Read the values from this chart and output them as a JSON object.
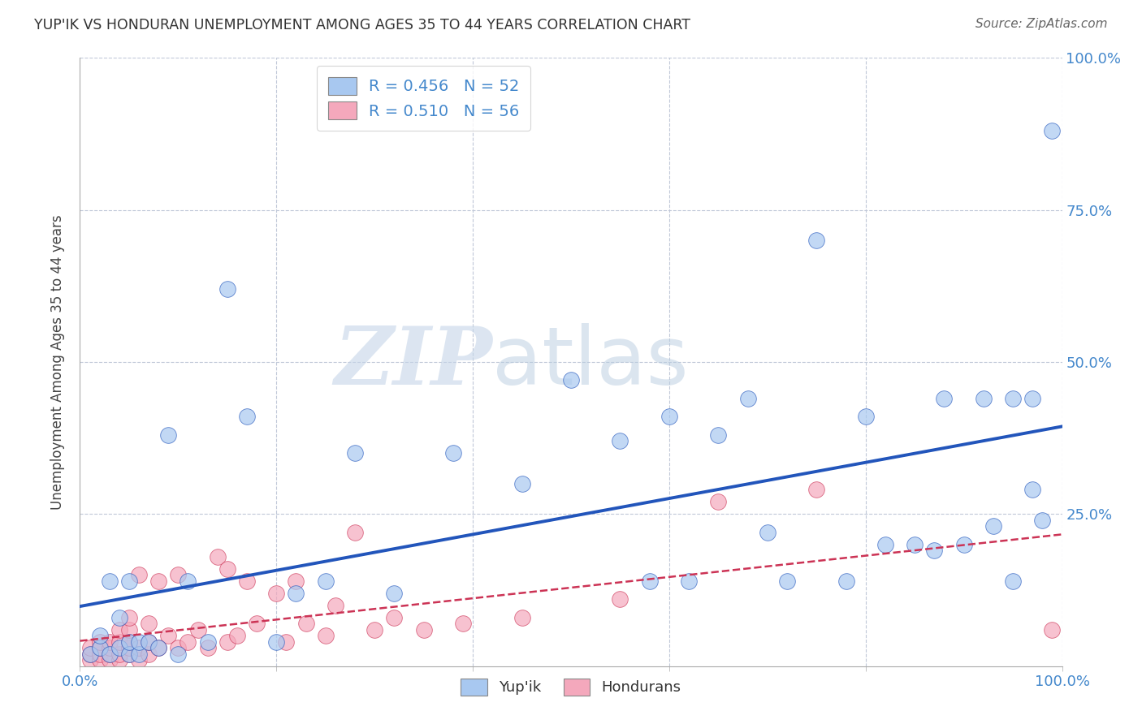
{
  "title": "YUP'IK VS HONDURAN UNEMPLOYMENT AMONG AGES 35 TO 44 YEARS CORRELATION CHART",
  "source": "Source: ZipAtlas.com",
  "ylabel": "Unemployment Among Ages 35 to 44 years",
  "xlim": [
    0,
    1.0
  ],
  "ylim": [
    0,
    1.0
  ],
  "xticks": [
    0.0,
    0.2,
    0.4,
    0.6,
    0.8,
    1.0
  ],
  "yticks": [
    0.0,
    0.25,
    0.5,
    0.75,
    1.0
  ],
  "xticklabels": [
    "0.0%",
    "",
    "",
    "",
    "",
    "100.0%"
  ],
  "yticklabels_right": [
    "",
    "25.0%",
    "50.0%",
    "75.0%",
    "100.0%"
  ],
  "background_color": "#ffffff",
  "grid_color": "#c0c8d8",
  "watermark_zip": "ZIP",
  "watermark_atlas": "atlas",
  "legend_r1": "R = 0.456",
  "legend_n1": "N = 52",
  "legend_r2": "R = 0.510",
  "legend_n2": "N = 56",
  "legend_label1": "Yup'ik",
  "legend_label2": "Hondurans",
  "scatter_color1": "#a8c8f0",
  "scatter_color2": "#f4a8bc",
  "line_color1": "#2255bb",
  "line_color2": "#cc3355",
  "axis_color": "#4488cc",
  "title_color": "#333333",
  "source_color": "#666666",
  "yupik_x": [
    0.01,
    0.02,
    0.02,
    0.03,
    0.03,
    0.04,
    0.04,
    0.05,
    0.05,
    0.05,
    0.06,
    0.06,
    0.07,
    0.08,
    0.09,
    0.1,
    0.11,
    0.13,
    0.15,
    0.17,
    0.2,
    0.22,
    0.25,
    0.28,
    0.32,
    0.38,
    0.45,
    0.5,
    0.55,
    0.58,
    0.6,
    0.62,
    0.65,
    0.68,
    0.7,
    0.72,
    0.75,
    0.78,
    0.8,
    0.82,
    0.85,
    0.87,
    0.88,
    0.9,
    0.92,
    0.93,
    0.95,
    0.95,
    0.97,
    0.97,
    0.98,
    0.99
  ],
  "yupik_y": [
    0.02,
    0.03,
    0.05,
    0.02,
    0.14,
    0.03,
    0.08,
    0.02,
    0.04,
    0.14,
    0.02,
    0.04,
    0.04,
    0.03,
    0.38,
    0.02,
    0.14,
    0.04,
    0.62,
    0.41,
    0.04,
    0.12,
    0.14,
    0.35,
    0.12,
    0.35,
    0.3,
    0.47,
    0.37,
    0.14,
    0.41,
    0.14,
    0.38,
    0.44,
    0.22,
    0.14,
    0.7,
    0.14,
    0.41,
    0.2,
    0.2,
    0.19,
    0.44,
    0.2,
    0.44,
    0.23,
    0.44,
    0.14,
    0.44,
    0.29,
    0.24,
    0.88
  ],
  "honduran_x": [
    0.01,
    0.01,
    0.01,
    0.02,
    0.02,
    0.02,
    0.02,
    0.03,
    0.03,
    0.03,
    0.03,
    0.04,
    0.04,
    0.04,
    0.04,
    0.05,
    0.05,
    0.05,
    0.05,
    0.05,
    0.06,
    0.06,
    0.06,
    0.07,
    0.07,
    0.07,
    0.08,
    0.08,
    0.09,
    0.1,
    0.1,
    0.11,
    0.12,
    0.13,
    0.14,
    0.15,
    0.15,
    0.16,
    0.17,
    0.18,
    0.2,
    0.21,
    0.22,
    0.23,
    0.25,
    0.26,
    0.28,
    0.3,
    0.32,
    0.35,
    0.39,
    0.45,
    0.55,
    0.65,
    0.75,
    0.99
  ],
  "honduran_y": [
    0.01,
    0.02,
    0.03,
    0.01,
    0.02,
    0.03,
    0.04,
    0.01,
    0.02,
    0.03,
    0.04,
    0.01,
    0.02,
    0.04,
    0.06,
    0.02,
    0.03,
    0.04,
    0.06,
    0.08,
    0.01,
    0.03,
    0.15,
    0.02,
    0.04,
    0.07,
    0.03,
    0.14,
    0.05,
    0.03,
    0.15,
    0.04,
    0.06,
    0.03,
    0.18,
    0.04,
    0.16,
    0.05,
    0.14,
    0.07,
    0.12,
    0.04,
    0.14,
    0.07,
    0.05,
    0.1,
    0.22,
    0.06,
    0.08,
    0.06,
    0.07,
    0.08,
    0.11,
    0.27,
    0.29,
    0.06
  ]
}
